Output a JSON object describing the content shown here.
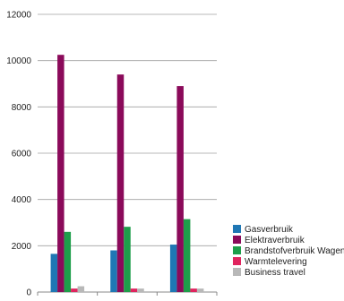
{
  "chart_data": {
    "type": "bar",
    "categories": [
      "",
      "",
      ""
    ],
    "series": [
      {
        "name": "Gasverbruik",
        "color": "#1f77b4",
        "values": [
          1650,
          1800,
          2050
        ]
      },
      {
        "name": "Elektraverbruik",
        "color": "#8b0a5a",
        "values": [
          10250,
          9400,
          8900
        ]
      },
      {
        "name": "Brandstofverbruik Wagenpark",
        "color": "#1e9e4a",
        "values": [
          2600,
          2820,
          3150
        ]
      },
      {
        "name": "Warmtelevering",
        "color": "#e0245e",
        "values": [
          150,
          150,
          150
        ]
      },
      {
        "name": "Business travel",
        "color": "#b8b8b8",
        "values": [
          250,
          150,
          150
        ]
      }
    ],
    "y_ticks": [
      "0",
      "2000",
      "4000",
      "6000",
      "8000",
      "10000",
      "12000"
    ],
    "ylim": [
      0,
      12000
    ],
    "grid": true,
    "legend_position": "bottom-right",
    "title": "",
    "xlabel": "",
    "ylabel": ""
  }
}
